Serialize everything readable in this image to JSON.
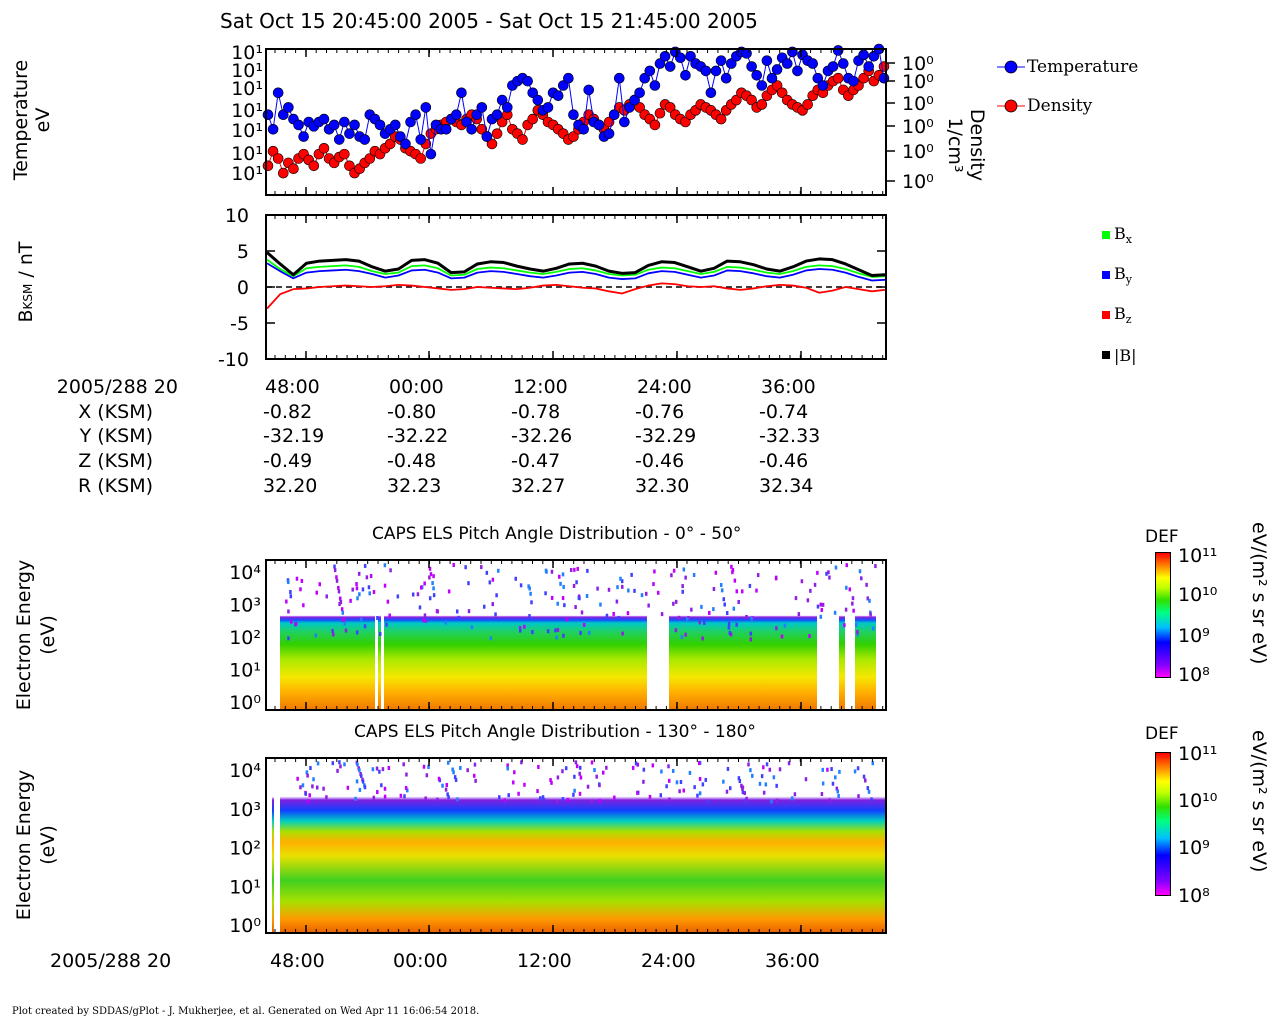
{
  "header": {
    "title": "Sat Oct 15 20:45:00 2005 - Sat Oct 15 21:45:00 2005"
  },
  "panel1": {
    "ylabel_left_line1": "Temperature",
    "ylabel_left_line2": "eV",
    "ylabel_right_line1": "Density",
    "ylabel_right_line2": "1/cm³",
    "left_tick_labels": [
      "10¹",
      "10¹",
      "10¹",
      "10¹",
      "10¹",
      "10¹",
      "10¹"
    ],
    "right_tick_labels": [
      "10⁰",
      "10⁰",
      "10⁰",
      "10⁰",
      "10⁰",
      "10⁰"
    ],
    "legend": [
      {
        "label": "Temperature",
        "color": "#0000ff"
      },
      {
        "label": "Density",
        "color": "#ff0000"
      }
    ]
  },
  "panel2": {
    "ylabel_main": "B",
    "ylabel_sub": "KSM",
    "ylabel_rest": " / nT",
    "y_tick_labels": [
      "10",
      "5",
      "0",
      "-5",
      "-10"
    ],
    "legend": [
      {
        "label": "Bx",
        "main": "B",
        "sub": "x",
        "color": "#00ff00"
      },
      {
        "label": "By",
        "main": "B",
        "sub": "y",
        "color": "#0000ff"
      },
      {
        "label": "Bz",
        "main": "B",
        "sub": "z",
        "color": "#ff0000"
      },
      {
        "label": "|B|",
        "main": "|B|",
        "sub": "",
        "color": "#000000"
      }
    ]
  },
  "ephemeris": {
    "date_label": "2005/288 20",
    "times": [
      "48:00",
      "00:00",
      "12:00",
      "24:00",
      "36:00"
    ],
    "rows": [
      {
        "label": "X (KSM)",
        "values": [
          "-0.82",
          "-0.80",
          "-0.78",
          "-0.76",
          "-0.74"
        ]
      },
      {
        "label": "Y (KSM)",
        "values": [
          "-32.19",
          "-32.22",
          "-32.26",
          "-32.29",
          "-32.33"
        ]
      },
      {
        "label": "Z (KSM)",
        "values": [
          "-0.49",
          "-0.48",
          "-0.47",
          "-0.46",
          "-0.46"
        ]
      },
      {
        "label": "R (KSM)",
        "values": [
          "32.20",
          "32.23",
          "32.27",
          "32.30",
          "32.34"
        ]
      }
    ]
  },
  "spectro1": {
    "title": "CAPS ELS Pitch Angle Distribution - 0° - 50°",
    "ylabel_line1": "Electron Energy",
    "ylabel_line2": "(eV)",
    "y_tick_labels": [
      "10⁴",
      "10³",
      "10²",
      "10¹",
      "10⁰"
    ],
    "colorbar": {
      "title": "DEF",
      "unit": "eV/(m² s sr eV)",
      "tick_labels": [
        "10¹¹",
        "10¹⁰",
        "10⁹",
        "10⁸"
      ]
    }
  },
  "spectro2": {
    "title": "CAPS ELS Pitch Angle Distribution - 130° - 180°",
    "ylabel_line1": "Electron Energy",
    "ylabel_line2": "(eV)",
    "y_tick_labels": [
      "10⁴",
      "10³",
      "10²",
      "10¹",
      "10⁰"
    ],
    "colorbar": {
      "title": "DEF",
      "unit": "eV/(m² s sr eV)",
      "tick_labels": [
        "10¹¹",
        "10¹⁰",
        "10⁹",
        "10⁸"
      ]
    }
  },
  "bottom_axis": {
    "date_label": "2005/288 20",
    "times": [
      "48:00",
      "00:00",
      "12:00",
      "24:00",
      "36:00"
    ]
  },
  "footer": {
    "text": "Plot created by SDDAS/gPlot - J. Mukherjee, et al.  Generated on Wed Apr 11 16:06:54 2018."
  },
  "chart_data": [
    {
      "type": "scatter",
      "title": "",
      "xlabel": "",
      "ylabel": "Temperature eV",
      "y2label": "Density 1/cm³",
      "x_tick_labels": [
        "48:00",
        "00:00",
        "12:00",
        "24:00",
        "36:00"
      ],
      "series": [
        {
          "name": "Temperature",
          "color": "#0000ff",
          "values": [
            55,
            45,
            70,
            55,
            60,
            52,
            48,
            40,
            50,
            47,
            50,
            52,
            45,
            48,
            38,
            50,
            42,
            48,
            40,
            38,
            55,
            52,
            48,
            42,
            45,
            48,
            40,
            35,
            50,
            55,
            38,
            60,
            28,
            48,
            45,
            45,
            52,
            55,
            70,
            50,
            45,
            55,
            60,
            40,
            52,
            55,
            65,
            60,
            75,
            78,
            80,
            78,
            70,
            65,
            58,
            60,
            70,
            68,
            75,
            80,
            55,
            48,
            45,
            72,
            50,
            48,
            40,
            42,
            55,
            80,
            50,
            60,
            65,
            70,
            80,
            85,
            75,
            90,
            95,
            88,
            98,
            94,
            82,
            95,
            90,
            88,
            85,
            70,
            85,
            92,
            80,
            90,
            95,
            98,
            97,
            88,
            82,
            75,
            92,
            80,
            86,
            94,
            90,
            98,
            85,
            96,
            92,
            90,
            80,
            75,
            85,
            88,
            99,
            90,
            80,
            78,
            92,
            96,
            88,
            95,
            100,
            80
          ]
        },
        {
          "name": "Density",
          "color": "#ff0000",
          "values": [
            20,
            30,
            25,
            15,
            22,
            18,
            25,
            28,
            24,
            20,
            28,
            32,
            25,
            22,
            26,
            28,
            20,
            15,
            18,
            22,
            25,
            30,
            28,
            32,
            35,
            40,
            38,
            32,
            30,
            28,
            25,
            35,
            42,
            45,
            48,
            50,
            52,
            50,
            48,
            52,
            55,
            52,
            45,
            40,
            35,
            42,
            50,
            55,
            45,
            42,
            38,
            48,
            52,
            58,
            55,
            50,
            48,
            45,
            42,
            38,
            40,
            45,
            50,
            55,
            52,
            48,
            45,
            50,
            55,
            60,
            58,
            62,
            65,
            60,
            55,
            52,
            48,
            56,
            62,
            60,
            55,
            52,
            50,
            55,
            58,
            62,
            60,
            58,
            55,
            52,
            58,
            62,
            65,
            70,
            68,
            65,
            60,
            62,
            68,
            72,
            75,
            70,
            65,
            62,
            60,
            58,
            62,
            68,
            72,
            70,
            75,
            78,
            80,
            72,
            68,
            72,
            75,
            80,
            85,
            78,
            82,
            88
          ]
        }
      ]
    },
    {
      "type": "line",
      "title": "",
      "xlabel": "",
      "ylabel": "BKSM / nT",
      "ylim": [
        -10,
        10
      ],
      "x_tick_labels": [
        "48:00",
        "00:00",
        "12:00",
        "24:00",
        "36:00"
      ],
      "series": [
        {
          "name": "Bx",
          "color": "#00ff00",
          "values": [
            3.8,
            2.5,
            1.5,
            2.6,
            2.8,
            2.9,
            3.0,
            2.8,
            2.2,
            1.8,
            2.0,
            2.9,
            3.0,
            2.6,
            1.6,
            1.7,
            2.5,
            2.7,
            2.6,
            2.3,
            2.0,
            1.8,
            2.1,
            2.5,
            2.6,
            2.3,
            1.8,
            1.6,
            1.7,
            2.4,
            2.7,
            2.6,
            2.2,
            1.8,
            2.1,
            2.8,
            2.7,
            2.4,
            2.0,
            1.8,
            2.2,
            2.8,
            3.0,
            2.9,
            2.5,
            1.9,
            1.4,
            1.5
          ]
        },
        {
          "name": "By",
          "color": "#0000ff",
          "values": [
            3.3,
            2.2,
            1.2,
            2.0,
            2.2,
            2.3,
            2.4,
            2.2,
            1.8,
            1.3,
            1.6,
            2.3,
            2.4,
            2.0,
            1.2,
            1.3,
            2.0,
            2.2,
            2.1,
            1.8,
            1.5,
            1.3,
            1.6,
            2.0,
            2.1,
            1.8,
            1.3,
            1.1,
            1.2,
            1.9,
            2.2,
            2.1,
            1.7,
            1.3,
            1.6,
            2.3,
            2.2,
            1.9,
            1.5,
            1.3,
            1.7,
            2.3,
            2.5,
            2.4,
            2.0,
            1.4,
            0.9,
            1.0
          ]
        },
        {
          "name": "Bz",
          "color": "#ff0000",
          "values": [
            -3.0,
            -1.0,
            -0.3,
            -0.2,
            0.0,
            0.1,
            0.2,
            0.1,
            0.0,
            0.1,
            0.3,
            0.2,
            0.0,
            -0.2,
            -0.4,
            -0.3,
            0.0,
            -0.1,
            -0.2,
            -0.3,
            -0.1,
            0.2,
            0.3,
            0.1,
            -0.1,
            -0.2,
            -0.6,
            -0.9,
            -0.3,
            0.2,
            0.5,
            0.4,
            0.1,
            0.0,
            0.1,
            -0.2,
            -0.4,
            -0.2,
            0.1,
            0.3,
            0.2,
            -0.1,
            -0.8,
            -0.5,
            0.0,
            -0.3,
            -0.6,
            -0.4
          ]
        },
        {
          "name": "|B|",
          "color": "#000000",
          "values": [
            4.8,
            3.2,
            1.7,
            3.3,
            3.6,
            3.7,
            3.8,
            3.6,
            2.8,
            2.2,
            2.5,
            3.7,
            3.8,
            3.3,
            2.0,
            2.1,
            3.2,
            3.5,
            3.4,
            2.9,
            2.5,
            2.2,
            2.6,
            3.2,
            3.3,
            2.9,
            2.2,
            1.9,
            2.0,
            3.0,
            3.5,
            3.4,
            2.8,
            2.2,
            2.6,
            3.6,
            3.5,
            3.1,
            2.5,
            2.2,
            2.8,
            3.6,
            3.9,
            3.8,
            3.2,
            2.4,
            1.6,
            1.7
          ]
        }
      ]
    },
    {
      "type": "heatmap",
      "title": "CAPS ELS Pitch Angle Distribution - 0° - 50°",
      "xlabel": "",
      "ylabel": "Electron Energy (eV)",
      "y_scale": "log",
      "ylim": [
        1,
        20000
      ],
      "zlabel": "DEF eV/(m² s sr eV)",
      "zlim": [
        100000000.0,
        100000000000.0
      ]
    },
    {
      "type": "heatmap",
      "title": "CAPS ELS Pitch Angle Distribution - 130° - 180°",
      "xlabel": "",
      "ylabel": "Electron Energy (eV)",
      "y_scale": "log",
      "ylim": [
        1,
        20000
      ],
      "zlabel": "DEF eV/(m² s sr eV)",
      "zlim": [
        100000000.0,
        100000000000.0
      ]
    }
  ]
}
